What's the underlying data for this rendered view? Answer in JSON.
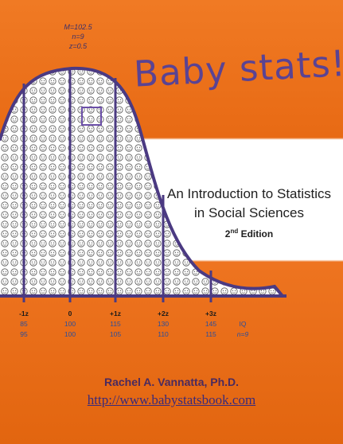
{
  "book": {
    "title": "Baby stats!",
    "subtitle_line1": "An Introduction to Statistics",
    "subtitle_line2": "in Social Sciences",
    "edition_num": "2",
    "edition_suffix": "nd",
    "edition_word": "Edition",
    "author": "Rachel A. Vannatta, Ph.D.",
    "url": "http://www.babystatsbook.com"
  },
  "stats": {
    "mean": "M=102.5",
    "n": "n=9",
    "z": "z=0.5"
  },
  "axis": {
    "ticks": [
      {
        "z": "-1z",
        "iq": "85",
        "n": "95"
      },
      {
        "z": "0",
        "iq": "100",
        "n": "100"
      },
      {
        "z": "+1z",
        "iq": "115",
        "n": "105"
      },
      {
        "z": "+2z",
        "iq": "130",
        "n": "110"
      },
      {
        "z": "+3z",
        "iq": "145",
        "n": "115"
      }
    ],
    "iq_label": "IQ",
    "n_label": "n=9"
  },
  "colors": {
    "orange": "#e86a14",
    "purple": "#5a4393",
    "curve": "#4b3a82",
    "blue": "#2b4e9c"
  }
}
